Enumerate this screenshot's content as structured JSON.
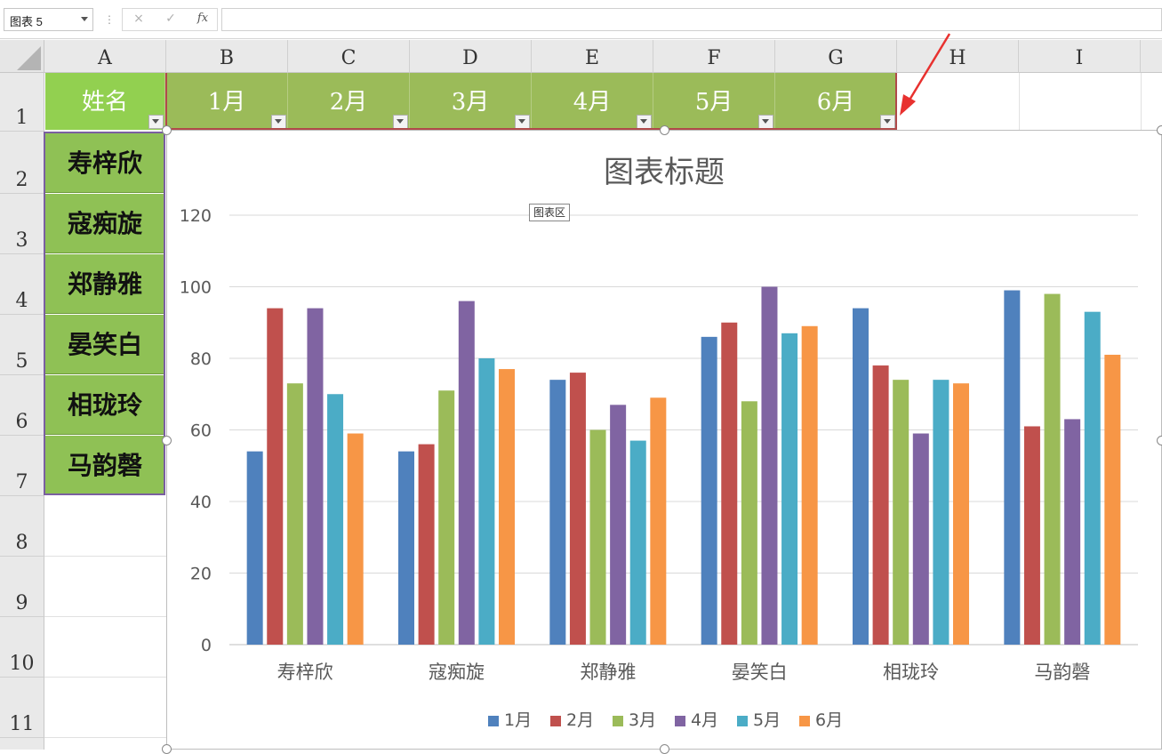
{
  "formula_bar": {
    "name_box": "图表 5",
    "cancel_icon": "×",
    "enter_icon": "✓",
    "fx_label": "fx",
    "formula": ""
  },
  "columns": [
    "A",
    "B",
    "C",
    "D",
    "E",
    "F",
    "G",
    "H",
    "I"
  ],
  "rows": [
    "1",
    "2",
    "3",
    "4",
    "5",
    "6",
    "7",
    "8",
    "9",
    "10",
    "11"
  ],
  "table": {
    "header": [
      "姓名",
      "1月",
      "2月",
      "3月",
      "4月",
      "5月",
      "6月"
    ],
    "names": [
      "寿梓欣",
      "寇痴旋",
      "郑静雅",
      "晏笑白",
      "相珑玲",
      "马韵磬"
    ]
  },
  "chart_tooltip": "图表区",
  "colors": {
    "s1": "#4f81bd",
    "s2": "#c0504d",
    "s3": "#9bbb59",
    "s4": "#8064a2",
    "s5": "#4bacc6",
    "s6": "#f79646",
    "annotation_arrow": "#e8312f"
  },
  "chart_data": {
    "type": "bar",
    "title": "图表标题",
    "categories": [
      "寿梓欣",
      "寇痴旋",
      "郑静雅",
      "晏笑白",
      "相珑玲",
      "马韵磬"
    ],
    "series": [
      {
        "name": "1月",
        "values": [
          54,
          54,
          74,
          86,
          94,
          99
        ]
      },
      {
        "name": "2月",
        "values": [
          94,
          56,
          76,
          90,
          78,
          61
        ]
      },
      {
        "name": "3月",
        "values": [
          73,
          71,
          60,
          68,
          74,
          98
        ]
      },
      {
        "name": "4月",
        "values": [
          94,
          96,
          67,
          100,
          59,
          63
        ]
      },
      {
        "name": "5月",
        "values": [
          70,
          80,
          57,
          87,
          74,
          93
        ]
      },
      {
        "name": "6月",
        "values": [
          59,
          77,
          69,
          89,
          73,
          81
        ]
      }
    ],
    "ylim": [
      0,
      120
    ],
    "yticks": [
      "0",
      "20",
      "40",
      "60",
      "80",
      "100",
      "120"
    ],
    "grid": true,
    "legend": "bottom"
  }
}
